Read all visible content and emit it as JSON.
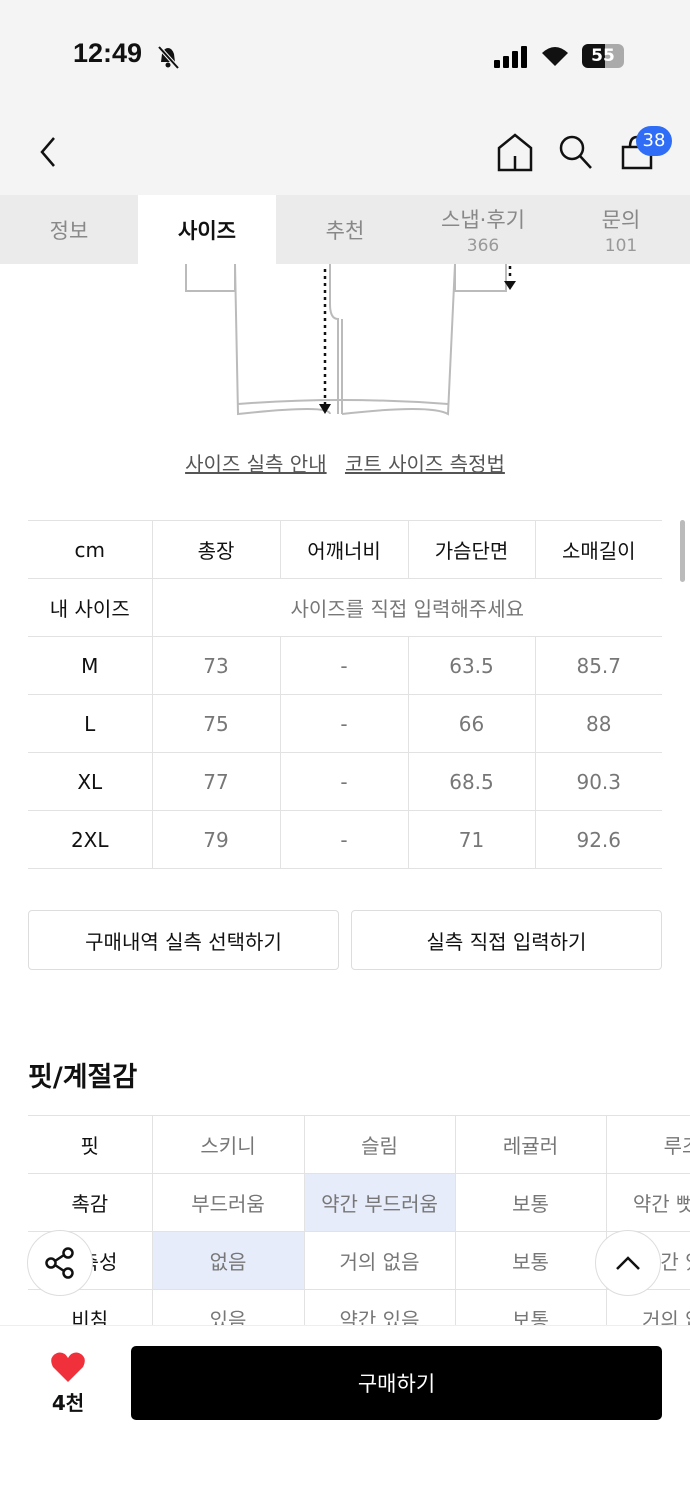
{
  "status_bar": {
    "time": "12:49",
    "battery": "55",
    "icons": [
      "bell-slash-icon",
      "signal-icon",
      "wifi-icon",
      "battery-icon"
    ]
  },
  "nav": {
    "cart_badge": "38",
    "badge_color": "#2f6df6",
    "icons": [
      "back-icon",
      "home-icon",
      "search-icon",
      "cart-icon"
    ]
  },
  "tabs": [
    {
      "label": "정보"
    },
    {
      "label": "사이즈",
      "active": true
    },
    {
      "label": "추천"
    },
    {
      "label": "스냅·후기",
      "count": "366"
    },
    {
      "label": "문의",
      "count": "101"
    }
  ],
  "links": {
    "size_guide": "사이즈 실측 안내",
    "coat_measure": "코트 사이즈 측정법"
  },
  "size_table": {
    "headers": [
      "cm",
      "총장",
      "어깨너비",
      "가슴단면",
      "소매길이"
    ],
    "my_size_label": "내 사이즈",
    "my_size_prompt": "사이즈를 직접 입력해주세요",
    "rows": [
      [
        "M",
        "73",
        "-",
        "63.5",
        "85.7"
      ],
      [
        "L",
        "75",
        "-",
        "66",
        "88"
      ],
      [
        "XL",
        "77",
        "-",
        "68.5",
        "90.3"
      ],
      [
        "2XL",
        "79",
        "-",
        "71",
        "92.6"
      ]
    ]
  },
  "buttons": {
    "purchase_history": "구매내역 실측 선택하기",
    "direct_input": "실측 직접 입력하기"
  },
  "fit": {
    "title": "핏/계절감",
    "rows": [
      {
        "label": "핏",
        "values": [
          "스키니",
          "슬림",
          "레귤러",
          "루즈"
        ],
        "selected": -1
      },
      {
        "label": "촉감",
        "values": [
          "부드러움",
          "약간 부드러움",
          "보통",
          "약간 뻣뻣함"
        ],
        "selected": 1
      },
      {
        "label": "신축성",
        "values": [
          "없음",
          "거의 없음",
          "보통",
          "약간 있음"
        ],
        "selected": 0
      },
      {
        "label": "비침",
        "values": [
          "있음",
          "약간 있음",
          "보통",
          "거의 없음"
        ],
        "selected": -1
      }
    ]
  },
  "bottom": {
    "likes": "4천",
    "buy": "구매하기",
    "heart_color": "#f0303a"
  }
}
